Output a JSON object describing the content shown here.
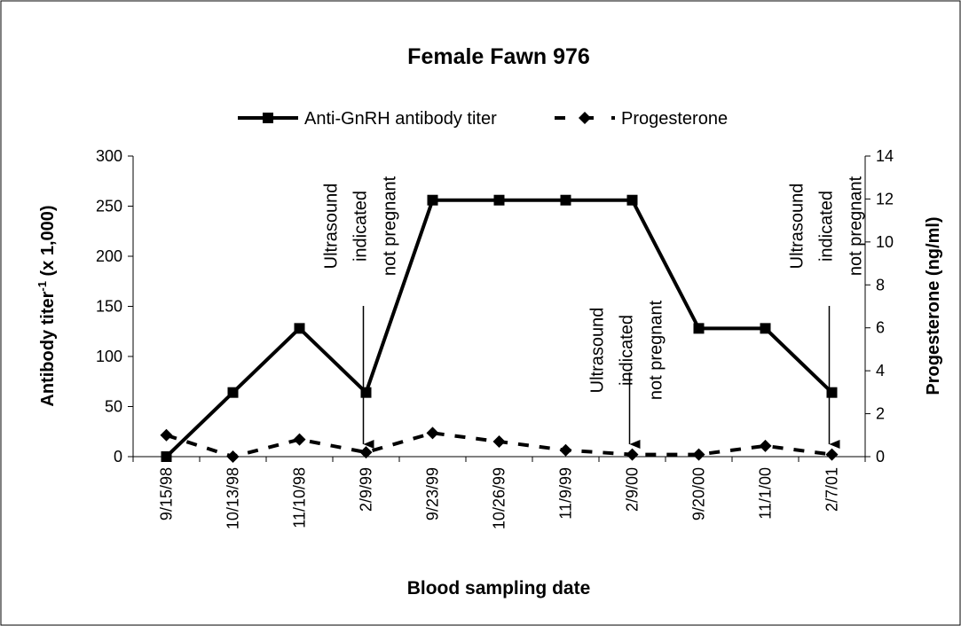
{
  "chart_data": {
    "type": "line",
    "title": "Female Fawn 976",
    "x_label": "Blood sampling date",
    "y_label": {
      "text": "Antibody titer",
      "superscript": "-1",
      "suffix": " (x 1,000)"
    },
    "y2_label": "Progesterone (ng/ml)",
    "categories": [
      "9/15/98",
      "10/13/98",
      "11/10/98",
      "2/9/99",
      "9/23/99",
      "10/26/99",
      "11/9/99",
      "2/9/00",
      "9/20/00",
      "11/1/00",
      "2/7/01"
    ],
    "series": [
      {
        "name": "Anti-GnRH antibody titer",
        "color": "#000000",
        "values": [
          0,
          64,
          128,
          64,
          256,
          256,
          256,
          256,
          128,
          128,
          64
        ]
      },
      {
        "name": "Progesterone",
        "color": "#000000",
        "axis": "y2",
        "values": [
          1.0,
          0,
          0.8,
          0.2,
          1.1,
          0.7,
          0.3,
          0.1,
          0.1,
          0.5,
          0.1
        ]
      }
    ],
    "ylim": [
      0,
      300
    ],
    "yticks": [
      0,
      50,
      100,
      150,
      200,
      250,
      300
    ],
    "y2lim": [
      0,
      14
    ],
    "y2ticks": [
      0,
      2,
      4,
      6,
      8,
      10,
      12,
      14
    ],
    "legend": "top",
    "annotations": [
      {
        "lines": [
          "Ultrasound",
          "indicated",
          "not pregnant"
        ]
      },
      {
        "lines": [
          "Ultrasound",
          "indicated",
          "not pregnant"
        ]
      },
      {
        "lines": [
          "Ultrasound",
          "indicated",
          "not pregnant"
        ]
      }
    ]
  }
}
